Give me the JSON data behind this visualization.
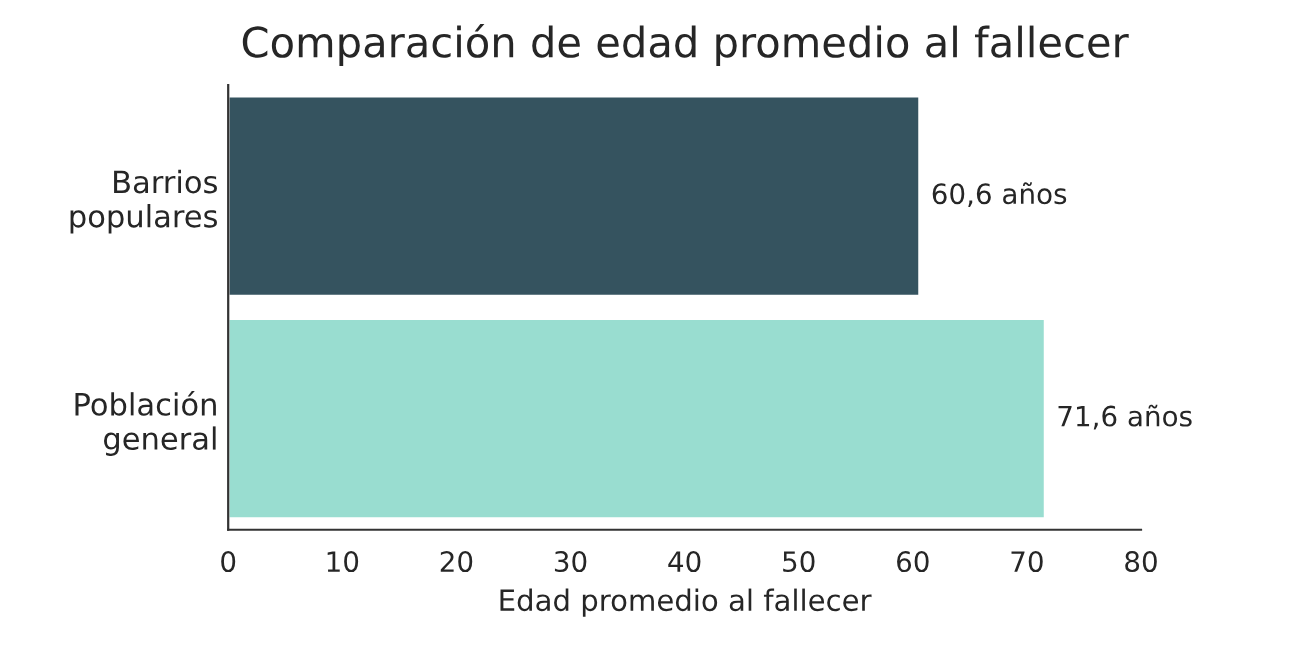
{
  "chart_data": {
    "type": "bar",
    "orientation": "horizontal",
    "title": "Comparación de edad promedio al fallecer",
    "xlabel": "Edad promedio al fallecer",
    "categories": [
      "Barrios\npopulares",
      "Población\ngeneral"
    ],
    "values": [
      60.6,
      71.6
    ],
    "colors": [
      "#35535f",
      "#99ddd0"
    ],
    "value_labels": [
      "60,6 años",
      "71,6 años"
    ],
    "xlim": [
      0,
      80
    ],
    "xticks": [
      0,
      10,
      20,
      30,
      40,
      50,
      60,
      70,
      80
    ],
    "grid": false
  }
}
